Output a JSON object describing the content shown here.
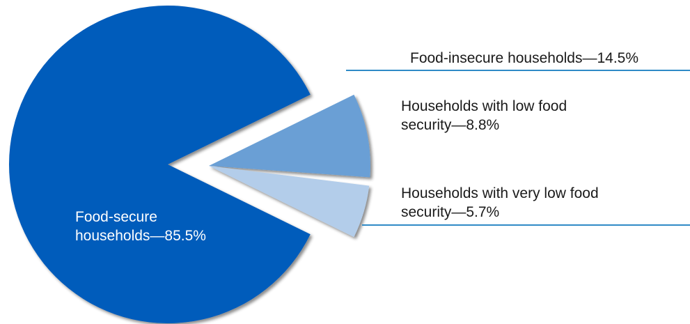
{
  "chart_data": {
    "type": "pie",
    "slices": [
      {
        "name": "Food-secure households",
        "value": 85.5,
        "label_line1": "Food-secure",
        "label_line2": "households—85.5%",
        "color": "#005bbb"
      },
      {
        "name": "Households with low food security",
        "value": 8.8,
        "label_line1": "Households with low food",
        "label_line2": "security—8.8%",
        "color": "#6a9fd5"
      },
      {
        "name": "Households with very low food security",
        "value": 5.7,
        "label_line1": "Households with very low food",
        "label_line2": "security—5.7%",
        "color": "#b3cdea"
      }
    ],
    "group_label": "Food-insecure households—14.5%",
    "leader_color": "#2f8ac6"
  }
}
